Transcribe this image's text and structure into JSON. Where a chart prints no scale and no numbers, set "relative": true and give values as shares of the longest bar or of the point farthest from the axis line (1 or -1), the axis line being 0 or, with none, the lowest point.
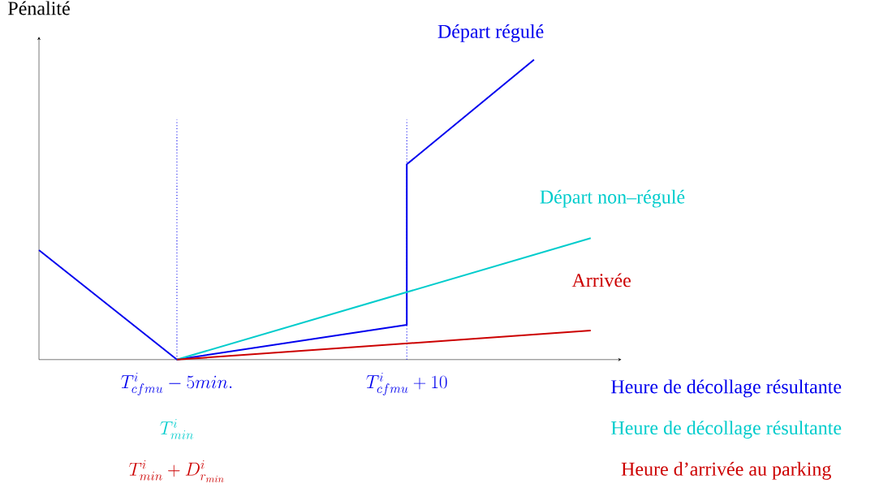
{
  "chart_data": {
    "type": "line",
    "relative": true,
    "ylabel": "Pénalité",
    "xlabel": "Heure de décollage résultante",
    "xlim": [
      -14,
      24
    ],
    "xticks": [
      {
        "value": -5,
        "label": "T^i_{cfmu} - 5 min."
      },
      {
        "value": 10,
        "label": "T^i_{cfmu} + 10"
      }
    ],
    "series": [
      {
        "name": "Départ régulé",
        "color": "#0000ee",
        "x": [
          -14,
          -5,
          10,
          10,
          18.3
        ],
        "values": [
          0.365,
          0,
          0.116,
          0.651,
          1
        ]
      },
      {
        "name": "Départ non–régulé",
        "color": "#00cccc",
        "x": [
          -5,
          22
        ],
        "values": [
          0,
          0.405
        ]
      },
      {
        "name": "Arrivée",
        "color": "#cc0000",
        "x": [
          -5,
          22
        ],
        "values": [
          0,
          0.097
        ]
      }
    ],
    "ref_lines": [
      {
        "axis": "x",
        "value": -5,
        "color": "#0000ee",
        "line_style": "dotted"
      },
      {
        "axis": "x",
        "value": 10,
        "color": "#0000ee",
        "line_style": "dotted"
      }
    ],
    "annotations": [
      "T^i_{min}",
      "Heure de décollage résultante",
      "T^i_{min} + D^i_{r_{min}}",
      "Heure d’arrivée au parking"
    ],
    "legend": false,
    "marker": "none",
    "line_style": "solid"
  }
}
